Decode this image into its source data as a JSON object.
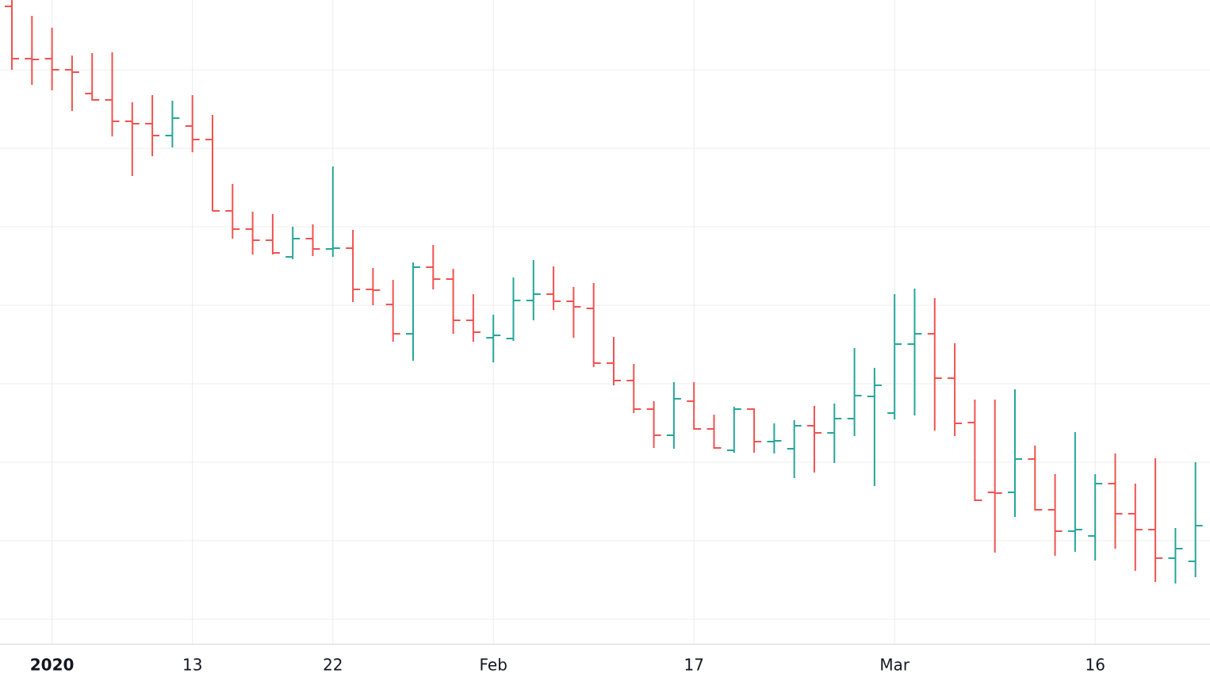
{
  "chart_data": {
    "type": "ohlc",
    "categories": [
      null,
      null,
      "2020",
      null,
      null,
      null,
      null,
      null,
      null,
      "13",
      null,
      null,
      null,
      null,
      null,
      null,
      "22",
      null,
      null,
      null,
      null,
      null,
      null,
      null,
      "Feb",
      null,
      null,
      null,
      null,
      null,
      null,
      null,
      null,
      null,
      "17",
      null,
      null,
      null,
      null,
      null,
      null,
      null,
      null,
      null,
      "Mar",
      null,
      null,
      null,
      null,
      null,
      null,
      null,
      null,
      null,
      "16",
      null,
      null,
      null,
      null,
      null
    ],
    "open": [
      856,
      790,
      790,
      776,
      746,
      738,
      711,
      708,
      693,
      705,
      688,
      598,
      575,
      561,
      540,
      563,
      550,
      551,
      499,
      480,
      443,
      527,
      512,
      460,
      438,
      437,
      485,
      493,
      484,
      475,
      406,
      384,
      348,
      315,
      358,
      323,
      296,
      348,
      307,
      298,
      327,
      318,
      336,
      364,
      343,
      430,
      443,
      387,
      331,
      243,
      243,
      285,
      221,
      194,
      188,
      254,
      216,
      196,
      160,
      156
    ],
    "high": [
      864,
      844,
      829,
      794,
      797,
      798,
      735,
      744,
      737,
      744,
      719,
      632,
      597,
      594,
      578,
      581,
      654,
      574,
      526,
      511,
      533,
      555,
      525,
      493,
      467,
      514,
      536,
      528,
      502,
      507,
      439,
      405,
      358,
      382,
      382,
      341,
      351,
      349,
      330,
      334,
      352,
      355,
      425,
      400,
      493,
      500,
      488,
      431,
      360,
      360,
      373,
      302,
      266,
      319,
      266,
      292,
      254,
      286,
      198,
      281
    ],
    "low": [
      776,
      757,
      750,
      724,
      737,
      692,
      642,
      667,
      678,
      672,
      598,
      563,
      543,
      543,
      537,
      541,
      540,
      483,
      479,
      433,
      409,
      499,
      443,
      433,
      407,
      434,
      460,
      473,
      438,
      401,
      378,
      343,
      299,
      298,
      322,
      298,
      293,
      293,
      292,
      261,
      268,
      280,
      314,
      251,
      335,
      340,
      321,
      314,
      232,
      167,
      212,
      220,
      163,
      168,
      157,
      172,
      144,
      130,
      128,
      136
    ],
    "close": [
      790,
      789,
      776,
      773,
      738,
      711,
      708,
      693,
      715,
      688,
      598,
      575,
      561,
      545,
      563,
      550,
      551,
      499,
      498,
      443,
      527,
      512,
      460,
      445,
      441,
      485,
      493,
      484,
      477,
      406,
      384,
      348,
      315,
      361,
      323,
      299,
      348,
      307,
      308,
      327,
      318,
      336,
      365,
      378,
      430,
      443,
      387,
      330,
      233,
      242,
      285,
      221,
      194,
      196,
      254,
      216,
      196,
      160,
      172,
      201
    ],
    "up_color": "#26a69a",
    "down_color": "#ef5350",
    "ylim": [
      52,
      864
    ],
    "yticks": [
      83,
      182,
      281,
      380,
      479,
      578,
      677,
      776
    ],
    "grid": true
  }
}
